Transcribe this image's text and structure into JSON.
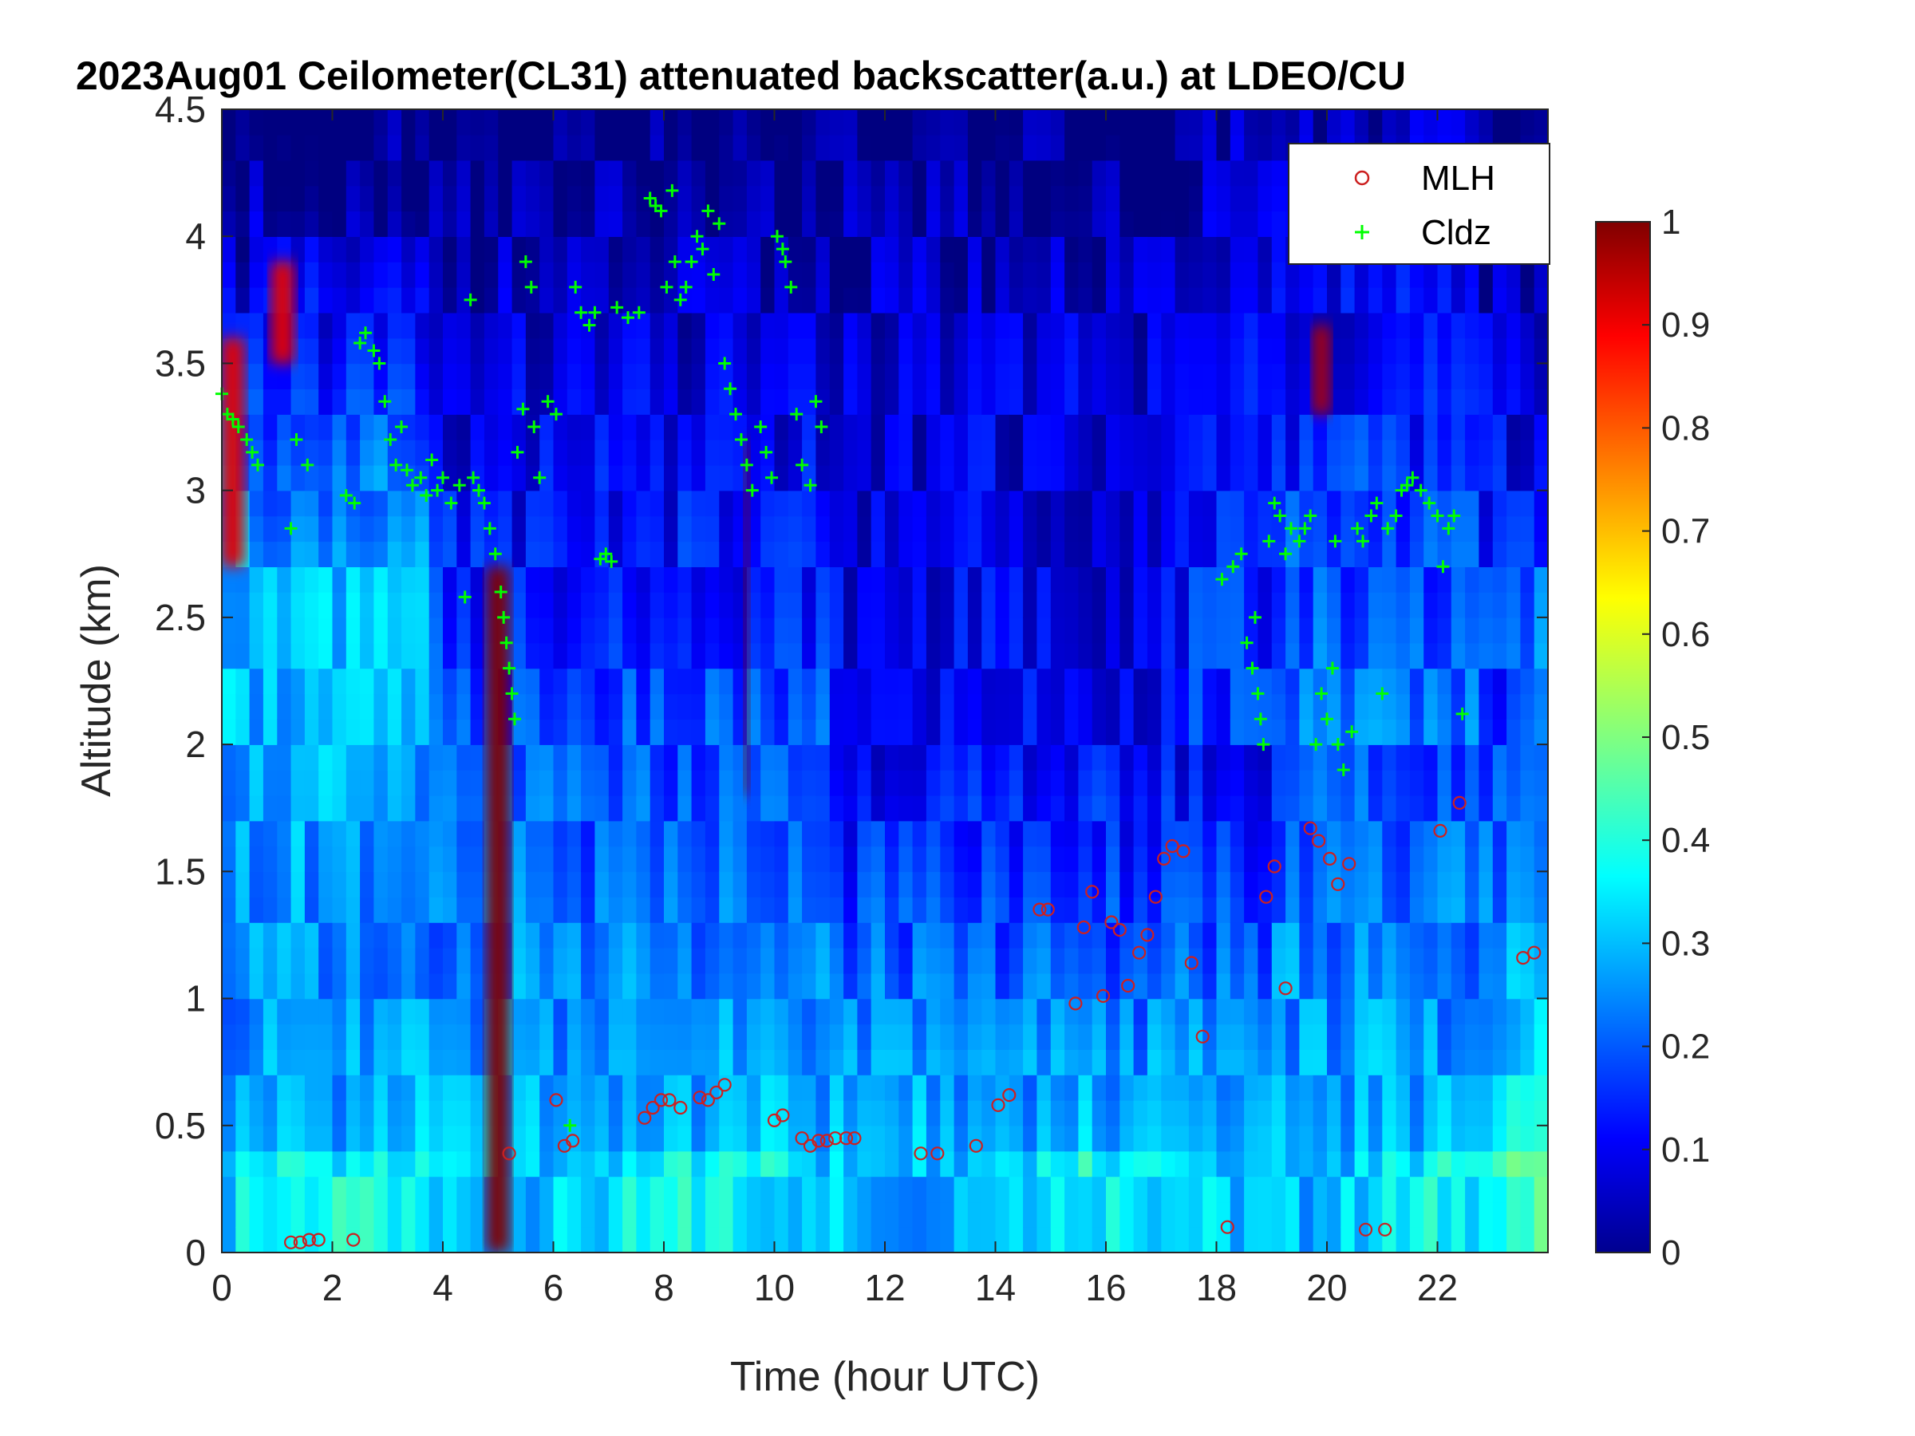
{
  "chart_data": {
    "type": "heatmap",
    "title": "2023Aug01 Ceilometer(CL31) attenuated backscatter(a.u.) at LDEO/CU",
    "xlabel": "Time (hour UTC)",
    "ylabel": "Altitude (km)",
    "xlim": [
      0,
      24
    ],
    "ylim": [
      0,
      4.5
    ],
    "xticks": [
      0,
      2,
      4,
      6,
      8,
      10,
      12,
      14,
      16,
      18,
      20,
      22
    ],
    "yticks": [
      0,
      0.5,
      1,
      1.5,
      2,
      2.5,
      3,
      3.5,
      4,
      4.5
    ],
    "colorbar": {
      "min": 0,
      "max": 1,
      "ticks": [
        0,
        0.1,
        0.2,
        0.3,
        0.4,
        0.5,
        0.6,
        0.7,
        0.8,
        0.9,
        1
      ],
      "colormap": "jet"
    },
    "legend": {
      "position": "top-right",
      "entries": [
        "MLH",
        "Cldz"
      ]
    },
    "series": [
      {
        "name": "MLH",
        "marker": "circle",
        "color": "#cc2020",
        "points": [
          [
            1.25,
            0.04
          ],
          [
            1.42,
            0.04
          ],
          [
            1.58,
            0.05
          ],
          [
            1.75,
            0.05
          ],
          [
            2.38,
            0.05
          ],
          [
            5.2,
            0.39
          ],
          [
            6.05,
            0.6
          ],
          [
            6.2,
            0.42
          ],
          [
            6.35,
            0.44
          ],
          [
            7.65,
            0.53
          ],
          [
            7.8,
            0.57
          ],
          [
            7.95,
            0.6
          ],
          [
            8.1,
            0.6
          ],
          [
            8.3,
            0.57
          ],
          [
            8.65,
            0.61
          ],
          [
            8.8,
            0.6
          ],
          [
            8.95,
            0.63
          ],
          [
            9.1,
            0.66
          ],
          [
            10.0,
            0.52
          ],
          [
            10.15,
            0.54
          ],
          [
            10.5,
            0.45
          ],
          [
            10.65,
            0.42
          ],
          [
            10.8,
            0.44
          ],
          [
            10.95,
            0.44
          ],
          [
            11.1,
            0.45
          ],
          [
            11.3,
            0.45
          ],
          [
            11.45,
            0.45
          ],
          [
            12.65,
            0.39
          ],
          [
            12.95,
            0.39
          ],
          [
            13.65,
            0.42
          ],
          [
            14.05,
            0.58
          ],
          [
            14.25,
            0.62
          ],
          [
            14.8,
            1.35
          ],
          [
            14.95,
            1.35
          ],
          [
            15.45,
            0.98
          ],
          [
            15.6,
            1.28
          ],
          [
            15.75,
            1.42
          ],
          [
            15.95,
            1.01
          ],
          [
            16.1,
            1.3
          ],
          [
            16.25,
            1.27
          ],
          [
            16.4,
            1.05
          ],
          [
            16.6,
            1.18
          ],
          [
            16.75,
            1.25
          ],
          [
            16.9,
            1.4
          ],
          [
            17.05,
            1.55
          ],
          [
            17.2,
            1.6
          ],
          [
            17.4,
            1.58
          ],
          [
            17.55,
            1.14
          ],
          [
            17.75,
            0.85
          ],
          [
            18.2,
            0.1
          ],
          [
            18.9,
            1.4
          ],
          [
            19.05,
            1.52
          ],
          [
            19.25,
            1.04
          ],
          [
            19.7,
            1.67
          ],
          [
            19.85,
            1.62
          ],
          [
            20.05,
            1.55
          ],
          [
            20.2,
            1.45
          ],
          [
            20.4,
            1.53
          ],
          [
            20.7,
            0.09
          ],
          [
            21.05,
            0.09
          ],
          [
            22.05,
            1.66
          ],
          [
            22.4,
            1.77
          ],
          [
            23.55,
            1.16
          ],
          [
            23.75,
            1.18
          ]
        ]
      },
      {
        "name": "Cldz",
        "marker": "plus",
        "color": "#00ff00",
        "points": [
          [
            0.0,
            3.38
          ],
          [
            0.1,
            3.3
          ],
          [
            0.2,
            3.28
          ],
          [
            0.3,
            3.25
          ],
          [
            0.45,
            3.2
          ],
          [
            0.55,
            3.15
          ],
          [
            0.65,
            3.1
          ],
          [
            1.25,
            2.85
          ],
          [
            1.35,
            3.2
          ],
          [
            1.55,
            3.1
          ],
          [
            2.25,
            2.98
          ],
          [
            2.4,
            2.95
          ],
          [
            2.5,
            3.58
          ],
          [
            2.6,
            3.62
          ],
          [
            2.75,
            3.55
          ],
          [
            2.85,
            3.5
          ],
          [
            2.95,
            3.35
          ],
          [
            3.05,
            3.2
          ],
          [
            3.15,
            3.1
          ],
          [
            3.25,
            3.25
          ],
          [
            3.35,
            3.08
          ],
          [
            3.45,
            3.02
          ],
          [
            3.6,
            3.05
          ],
          [
            3.7,
            2.98
          ],
          [
            3.8,
            3.12
          ],
          [
            3.9,
            3.0
          ],
          [
            4.0,
            3.05
          ],
          [
            4.15,
            2.95
          ],
          [
            4.3,
            3.02
          ],
          [
            4.4,
            2.58
          ],
          [
            4.5,
            3.75
          ],
          [
            4.55,
            3.05
          ],
          [
            4.65,
            3.0
          ],
          [
            4.75,
            2.95
          ],
          [
            4.85,
            2.85
          ],
          [
            4.95,
            2.75
          ],
          [
            5.05,
            2.6
          ],
          [
            5.1,
            2.5
          ],
          [
            5.15,
            2.4
          ],
          [
            5.2,
            2.3
          ],
          [
            5.25,
            2.2
          ],
          [
            5.3,
            2.1
          ],
          [
            5.35,
            3.15
          ],
          [
            5.45,
            3.32
          ],
          [
            5.5,
            3.9
          ],
          [
            5.6,
            3.8
          ],
          [
            5.65,
            3.25
          ],
          [
            5.75,
            3.05
          ],
          [
            5.9,
            3.35
          ],
          [
            6.05,
            3.3
          ],
          [
            6.3,
            0.5
          ],
          [
            6.4,
            3.8
          ],
          [
            6.5,
            3.7
          ],
          [
            6.65,
            3.65
          ],
          [
            6.75,
            3.7
          ],
          [
            6.85,
            2.73
          ],
          [
            6.95,
            2.75
          ],
          [
            7.05,
            2.72
          ],
          [
            7.15,
            3.72
          ],
          [
            7.35,
            3.68
          ],
          [
            7.55,
            3.7
          ],
          [
            7.75,
            4.15
          ],
          [
            7.85,
            4.12
          ],
          [
            7.95,
            4.1
          ],
          [
            8.05,
            3.8
          ],
          [
            8.15,
            4.18
          ],
          [
            8.2,
            3.9
          ],
          [
            8.3,
            3.75
          ],
          [
            8.4,
            3.8
          ],
          [
            8.5,
            3.9
          ],
          [
            8.6,
            4.0
          ],
          [
            8.7,
            3.95
          ],
          [
            8.8,
            4.1
          ],
          [
            8.9,
            3.85
          ],
          [
            9.0,
            4.05
          ],
          [
            9.1,
            3.5
          ],
          [
            9.2,
            3.4
          ],
          [
            9.3,
            3.3
          ],
          [
            9.4,
            3.2
          ],
          [
            9.5,
            3.1
          ],
          [
            9.6,
            3.0
          ],
          [
            9.75,
            3.25
          ],
          [
            9.85,
            3.15
          ],
          [
            9.95,
            3.05
          ],
          [
            10.05,
            4.0
          ],
          [
            10.15,
            3.95
          ],
          [
            10.2,
            3.9
          ],
          [
            10.3,
            3.8
          ],
          [
            10.4,
            3.3
          ],
          [
            10.5,
            3.1
          ],
          [
            10.65,
            3.02
          ],
          [
            10.75,
            3.35
          ],
          [
            10.85,
            3.25
          ],
          [
            18.1,
            2.65
          ],
          [
            18.3,
            2.7
          ],
          [
            18.45,
            2.75
          ],
          [
            18.55,
            2.4
          ],
          [
            18.65,
            2.3
          ],
          [
            18.7,
            2.5
          ],
          [
            18.75,
            2.2
          ],
          [
            18.8,
            2.1
          ],
          [
            18.85,
            2.0
          ],
          [
            18.95,
            2.8
          ],
          [
            19.05,
            2.95
          ],
          [
            19.15,
            2.9
          ],
          [
            19.25,
            2.75
          ],
          [
            19.35,
            2.85
          ],
          [
            19.5,
            2.8
          ],
          [
            19.6,
            2.85
          ],
          [
            19.7,
            2.9
          ],
          [
            19.8,
            2.0
          ],
          [
            19.9,
            2.2
          ],
          [
            20.0,
            2.1
          ],
          [
            20.1,
            2.3
          ],
          [
            20.15,
            2.8
          ],
          [
            20.2,
            2.0
          ],
          [
            20.3,
            1.9
          ],
          [
            20.45,
            2.05
          ],
          [
            20.55,
            2.85
          ],
          [
            20.65,
            2.8
          ],
          [
            20.8,
            2.9
          ],
          [
            20.9,
            2.95
          ],
          [
            21.0,
            2.2
          ],
          [
            21.1,
            2.85
          ],
          [
            21.25,
            2.9
          ],
          [
            21.35,
            3.0
          ],
          [
            21.45,
            3.02
          ],
          [
            21.55,
            3.05
          ],
          [
            21.7,
            3.0
          ],
          [
            21.85,
            2.95
          ],
          [
            22.0,
            2.9
          ],
          [
            22.1,
            2.7
          ],
          [
            22.2,
            2.85
          ],
          [
            22.3,
            2.9
          ],
          [
            22.45,
            2.12
          ]
        ]
      }
    ],
    "background_features": [
      {
        "description": "cloud band",
        "x": [
          0,
          0.4
        ],
        "y": [
          2.7,
          3.6
        ],
        "value": 0.9
      },
      {
        "description": "cloud band",
        "x": [
          0.9,
          1.3
        ],
        "y": [
          3.5,
          3.9
        ],
        "value": 0.9
      },
      {
        "description": "precipitation column",
        "x": [
          4.8,
          5.2
        ],
        "y": [
          0,
          2.7
        ],
        "value": 1.0
      },
      {
        "description": "precipitation column",
        "x": [
          9.45,
          9.55
        ],
        "y": [
          1.8,
          3.2
        ],
        "value": 1.0
      },
      {
        "description": "cloud patch",
        "x": [
          19.75,
          20.05
        ],
        "y": [
          3.3,
          3.65
        ],
        "value": 0.95
      }
    ]
  }
}
